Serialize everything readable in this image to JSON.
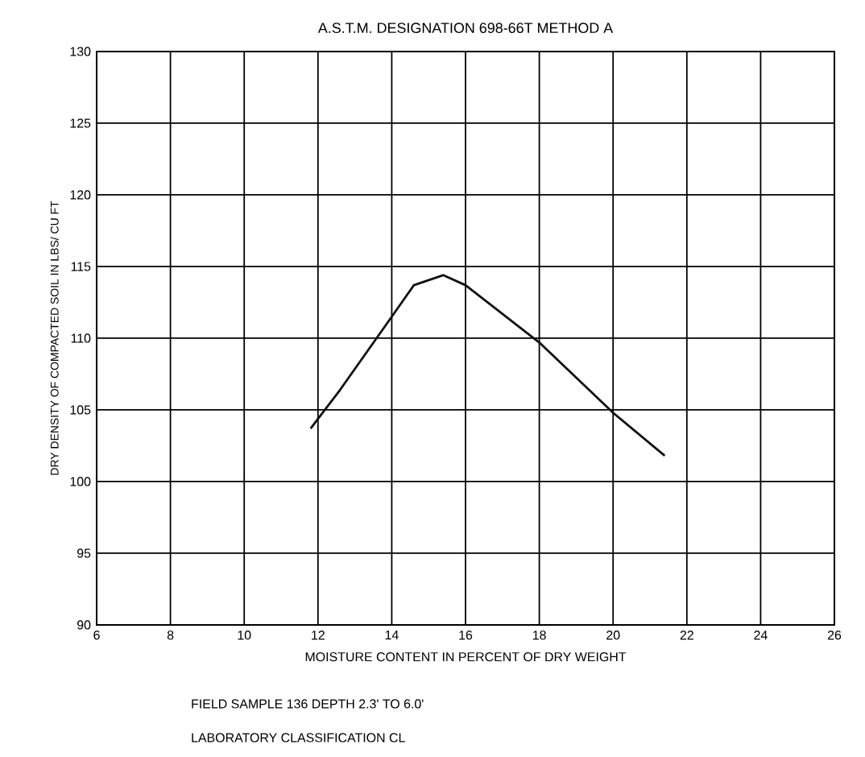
{
  "chart_data": {
    "type": "line",
    "title": "A.S.T.M. DESIGNATION 698-66T METHOD A",
    "xlabel": "MOISTURE CONTENT IN PERCENT OF DRY WEIGHT",
    "ylabel": "DRY DENSITY OF COMPACTED SOIL IN LBS/ CU FT",
    "annotations": [
      "FIELD SAMPLE 136 DEPTH 2.3' TO 6.0'",
      "LABORATORY CLASSIFICATION CL"
    ],
    "series": [
      {
        "color": "#111111",
        "x": [
          11.8,
          12.6,
          14.0,
          14.6,
          15.4,
          16.0,
          18.0,
          20.0,
          21.4
        ],
        "values": [
          103.7,
          106.4,
          111.5,
          113.7,
          114.4,
          113.7,
          109.7,
          104.8,
          101.8
        ]
      }
    ],
    "xlim": [
      6,
      26
    ],
    "xticks": [
      6,
      8,
      10,
      12,
      14,
      16,
      18,
      20,
      22,
      24,
      26
    ],
    "ylim": [
      90,
      130
    ],
    "yticks": [
      90,
      95,
      100,
      105,
      110,
      115,
      120,
      125,
      130
    ],
    "grid": true,
    "marker": "none",
    "line_style": "solid"
  }
}
